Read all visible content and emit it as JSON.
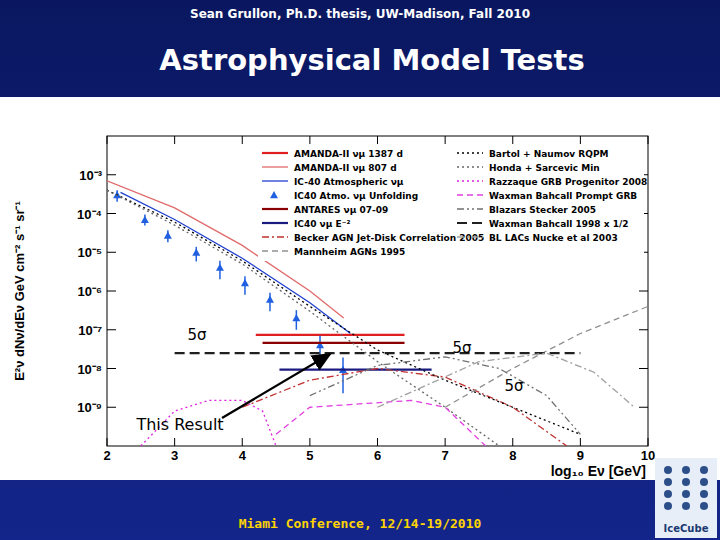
{
  "slide": {
    "header": "Sean Grullon, Ph.D. thesis, UW-Madison, Fall 2010",
    "title": "Astrophysical Model Tests",
    "footer": "Miami Conference, 12/14-19/2010",
    "logo": "IceCube"
  },
  "chart_data": {
    "type": "line",
    "log": "y",
    "xlabel": "log₁₀ Eν [GeV]",
    "ylabel": "E²ν dNν/dEν GeV cm⁻² s⁻¹ sr⁻¹",
    "xlim": [
      2,
      10
    ],
    "xticks": [
      2,
      3,
      4,
      5,
      6,
      7,
      8,
      9,
      10
    ],
    "ylim": [
      1e-10,
      0.01
    ],
    "yticks": [
      {
        "value": 1e-09,
        "label": "10⁻⁹"
      },
      {
        "value": 1e-08,
        "label": "10⁻⁸"
      },
      {
        "value": 1e-07,
        "label": "10⁻⁷"
      },
      {
        "value": 1e-06,
        "label": "10⁻⁶"
      },
      {
        "value": 1e-05,
        "label": "10⁻⁵"
      },
      {
        "value": 0.0001,
        "label": "10⁻⁴"
      },
      {
        "value": 0.001,
        "label": "10⁻³"
      }
    ],
    "legend": "upper right",
    "annotations": [
      "5σ",
      "5σ",
      "5σ",
      "This Result"
    ],
    "series": [
      {
        "name": "AMANDA-II νμ 1387 d",
        "color": "#e02020",
        "line_style": "solid",
        "x": [
          4.2,
          6.4
        ],
        "values": [
          7.4e-08,
          7.4e-08
        ]
      },
      {
        "name": "AMANDA-II νμ 807 d",
        "color": "#e06a6a",
        "line_style": "solid",
        "x": [
          2,
          3,
          4,
          5,
          5.5
        ],
        "values": [
          0.0007,
          0.00014,
          1.5e-05,
          1e-06,
          2e-07
        ]
      },
      {
        "name": "IC-40 Atmospheric νμ",
        "color": "#2040d0",
        "line_style": "solid",
        "x": [
          2.2,
          3,
          4,
          5,
          5.6
        ],
        "values": [
          0.00035,
          7e-05,
          7e-06,
          5e-07,
          8e-08
        ]
      },
      {
        "name": "IC40 Atmo. νμ Unfolding",
        "type": "scatter",
        "marker": "triangle",
        "color": "#2060e0",
        "x": [
          2.15,
          2.56,
          2.9,
          3.32,
          3.67,
          4.04,
          4.41,
          4.8,
          5.15,
          5.49
        ],
        "values": [
          0.0003,
          6.9e-05,
          2.7e-05,
          9.8e-06,
          4e-06,
          1.6e-06,
          6e-07,
          2e-07,
          4e-08,
          9.3e-09
        ],
        "error_low": [
          0.0001,
          2e-05,
          9e-06,
          4e-06,
          2e-06,
          8e-07,
          3e-07,
          1e-07,
          2.5e-08,
          7e-09
        ],
        "error_high": [
          0.0001,
          2.5e-05,
          1e-05,
          4e-06,
          2e-06,
          8e-07,
          3e-07,
          1.2e-07,
          3e-08,
          1e-08
        ]
      },
      {
        "name": "ANTARES νμ 07-09",
        "color": "#8b0000",
        "line_style": "solid",
        "x": [
          4.3,
          6.4
        ],
        "values": [
          4.6e-08,
          4.6e-08
        ]
      },
      {
        "name": "IC40 νμ E⁻²",
        "color": "#1a1a80",
        "line_style": "solid",
        "x": [
          4.55,
          6.8
        ],
        "values": [
          9.3e-09,
          9.3e-09
        ]
      },
      {
        "name": "Becker AGN Jet-Disk Correlation 2005",
        "color": "#c03030",
        "line_style": "dash-dot",
        "x": [
          4,
          5,
          6,
          7,
          8,
          8.8
        ],
        "values": [
          1e-09,
          5e-09,
          1e-08,
          6e-09,
          1e-09,
          1e-10
        ]
      },
      {
        "name": "Mannheim AGNs 1995",
        "color": "#909090",
        "line_style": "dashed",
        "x": [
          7,
          8,
          9,
          10
        ],
        "values": [
          1e-09,
          1e-08,
          8e-08,
          4e-07
        ]
      },
      {
        "name": "Bartol + Naumov RQPM",
        "color": "#000000",
        "line_style": "dotted",
        "x": [
          2,
          3,
          4,
          5,
          6,
          7,
          8,
          9
        ],
        "values": [
          0.0004,
          6e-05,
          6e-06,
          4e-07,
          3e-08,
          5e-09,
          1e-09,
          2e-10
        ]
      },
      {
        "name": "Honda + Sarcevic Min",
        "color": "#666666",
        "line_style": "dotted",
        "x": [
          2,
          3,
          4,
          5,
          6,
          7,
          7.8
        ],
        "values": [
          0.0004,
          5e-05,
          5e-06,
          3e-07,
          1.5e-08,
          1e-09,
          1e-10
        ]
      },
      {
        "name": "Razzaque GRB Progenitor 2008",
        "color": "#e020e0",
        "line_style": "dotted",
        "x": [
          2.5,
          3,
          3.5,
          4,
          4.3,
          4.5
        ],
        "values": [
          1e-10,
          8e-10,
          1.5e-09,
          1.5e-09,
          8e-10,
          1e-10
        ]
      },
      {
        "name": "Waxman Bahcall Prompt GRB",
        "color": "#e040e0",
        "line_style": "dashed",
        "x": [
          4.5,
          5,
          6.5,
          7,
          7.6
        ],
        "values": [
          2e-10,
          1e-09,
          1.5e-09,
          1e-09,
          1e-10
        ]
      },
      {
        "name": "Blazars Stecker 2005",
        "color": "#707070",
        "line_style": "dash-dot-dot",
        "x": [
          5,
          6,
          7,
          7.8,
          8.5,
          9
        ],
        "values": [
          2e-09,
          1.2e-08,
          2e-08,
          1e-08,
          2e-09,
          2e-10
        ]
      },
      {
        "name": "Waxman Bahcall 1998 x 1/2",
        "color": "#202020",
        "line_style": "long-dash",
        "x": [
          3,
          9
        ],
        "values": [
          2.5e-08,
          2.5e-08
        ]
      },
      {
        "name": "BL LACs Nucke et al 2003",
        "color": "#a0a0a0",
        "line_style": "dash-dot",
        "x": [
          6,
          7.5,
          8.5,
          9.2,
          9.8
        ],
        "values": [
          1e-09,
          1.5e-08,
          2.5e-08,
          8e-09,
          1e-09
        ]
      }
    ]
  }
}
